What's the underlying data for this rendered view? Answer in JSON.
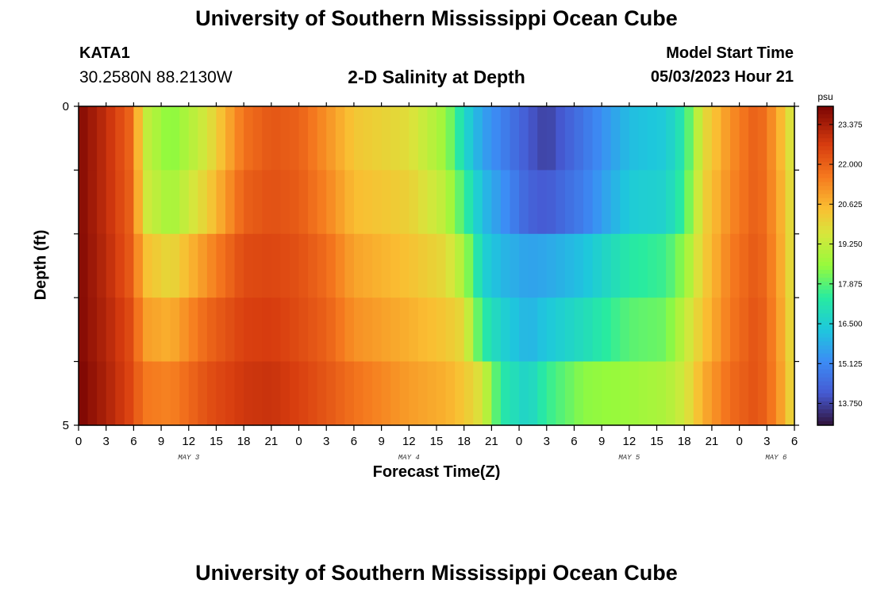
{
  "header": {
    "title": "University of Southern Mississippi Ocean Cube",
    "station_id": "KATA1",
    "station_coords": "30.2580N  88.2130W",
    "subtitle": "2-D Salinity at Depth",
    "start_label": "Model Start Time",
    "start_value": "05/03/2023 Hour 21"
  },
  "footer": {
    "title": "University of Southern Mississippi Ocean Cube"
  },
  "colors": {
    "frame": "#000000",
    "background": "#ffffff"
  },
  "chart_data": {
    "type": "heatmap",
    "title": "2-D Salinity at Depth",
    "xlabel": "Forecast Time(Z)",
    "ylabel": "Depth (ft)",
    "y_tick_labels": [
      "0",
      "5"
    ],
    "ylim": [
      0,
      5
    ],
    "x_hours_range": [
      0,
      78
    ],
    "x_ticks": [
      {
        "h": 0,
        "label": "0"
      },
      {
        "h": 3,
        "label": "3"
      },
      {
        "h": 6,
        "label": "6"
      },
      {
        "h": 9,
        "label": "9"
      },
      {
        "h": 12,
        "label": "12"
      },
      {
        "h": 15,
        "label": "15"
      },
      {
        "h": 18,
        "label": "18"
      },
      {
        "h": 21,
        "label": "21"
      },
      {
        "h": 24,
        "label": "0"
      },
      {
        "h": 27,
        "label": "3"
      },
      {
        "h": 30,
        "label": "6"
      },
      {
        "h": 33,
        "label": "9"
      },
      {
        "h": 36,
        "label": "12"
      },
      {
        "h": 39,
        "label": "15"
      },
      {
        "h": 42,
        "label": "18"
      },
      {
        "h": 45,
        "label": "21"
      },
      {
        "h": 48,
        "label": "0"
      },
      {
        "h": 51,
        "label": "3"
      },
      {
        "h": 54,
        "label": "6"
      },
      {
        "h": 57,
        "label": "9"
      },
      {
        "h": 60,
        "label": "12"
      },
      {
        "h": 63,
        "label": "15"
      },
      {
        "h": 66,
        "label": "18"
      },
      {
        "h": 69,
        "label": "21"
      },
      {
        "h": 72,
        "label": "0"
      },
      {
        "h": 75,
        "label": "3"
      },
      {
        "h": 78,
        "label": "6"
      }
    ],
    "day_labels": [
      {
        "h": 12,
        "label": "MAY 3"
      },
      {
        "h": 36,
        "label": "MAY 4"
      },
      {
        "h": 60,
        "label": "MAY 5"
      },
      {
        "h": 76,
        "label": "MAY 6"
      }
    ],
    "depth_layers": 5,
    "colorbar": {
      "unit": "psu",
      "min": 13.0,
      "max": 24.0,
      "tick_labels": [
        "23.375",
        "22.000",
        "20.625",
        "19.250",
        "17.875",
        "16.500",
        "15.125",
        "13.750"
      ],
      "tick_values": [
        23.375,
        22.0,
        20.625,
        19.25,
        17.875,
        16.5,
        15.125,
        13.75
      ]
    },
    "profile_times": [
      0,
      3,
      6,
      7,
      10,
      14,
      18,
      21,
      24,
      27,
      30,
      36,
      40,
      42,
      44,
      46,
      49,
      51,
      55,
      60,
      64,
      66,
      68,
      71,
      74,
      76,
      78
    ],
    "profiles": [
      [
        23.9,
        23.9,
        23.9,
        23.9,
        24.0
      ],
      [
        23.0,
        23.0,
        23.1,
        23.2,
        23.3
      ],
      [
        21.8,
        21.9,
        22.0,
        22.3,
        22.4
      ],
      [
        19.4,
        19.6,
        20.5,
        21.0,
        21.6
      ],
      [
        18.3,
        18.7,
        19.9,
        20.7,
        21.4
      ],
      [
        19.6,
        20.1,
        21.2,
        21.9,
        22.3
      ],
      [
        21.7,
        22.0,
        22.4,
        22.6,
        22.8
      ],
      [
        22.2,
        22.3,
        22.5,
        22.7,
        22.9
      ],
      [
        22.0,
        22.1,
        22.3,
        22.4,
        22.6
      ],
      [
        21.2,
        21.4,
        21.8,
        22.0,
        22.2
      ],
      [
        20.3,
        20.5,
        20.9,
        21.2,
        21.7
      ],
      [
        19.8,
        20.1,
        20.4,
        20.7,
        21.0
      ],
      [
        18.6,
        19.1,
        19.9,
        20.3,
        20.7
      ],
      [
        16.8,
        17.6,
        18.8,
        19.9,
        20.3
      ],
      [
        15.6,
        16.1,
        16.6,
        17.4,
        19.6
      ],
      [
        15.0,
        15.4,
        16.0,
        16.6,
        17.3
      ],
      [
        14.1,
        14.3,
        15.6,
        15.9,
        16.6
      ],
      [
        13.7,
        14.1,
        15.7,
        16.3,
        17.5
      ],
      [
        14.7,
        14.9,
        16.2,
        16.9,
        18.4
      ],
      [
        16.1,
        16.4,
        17.3,
        17.9,
        18.6
      ],
      [
        16.4,
        16.6,
        17.6,
        18.1,
        18.9
      ],
      [
        17.3,
        17.6,
        18.5,
        19.2,
        19.5
      ],
      [
        19.8,
        20.0,
        20.1,
        20.3,
        20.7
      ],
      [
        21.2,
        21.3,
        21.5,
        21.6,
        21.8
      ],
      [
        22.1,
        22.1,
        22.2,
        22.3,
        22.3
      ],
      [
        21.0,
        21.1,
        21.2,
        21.3,
        21.4
      ],
      [
        19.3,
        19.5,
        19.5,
        19.6,
        19.7
      ]
    ]
  }
}
